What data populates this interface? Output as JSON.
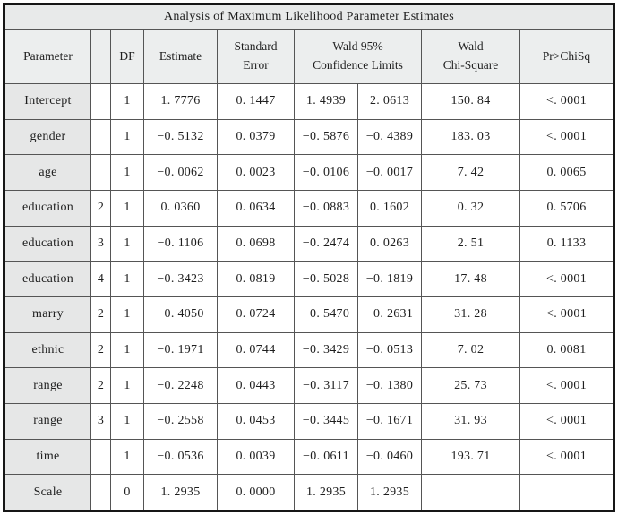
{
  "table": {
    "title": "Analysis of Maximum Likelihood Parameter Estimates",
    "headers": {
      "parameter": "Parameter",
      "level": "",
      "df": "DF",
      "estimate": "Estimate",
      "std_error_line1": "Standard",
      "std_error_line2": "Error",
      "ci_line1": "Wald 95%",
      "ci_line2": "Confidence Limits",
      "chi_square_line1": "Wald",
      "chi_square_line2": "Chi-Square",
      "p_value": "Pr>ChiSq"
    },
    "rows": [
      {
        "parameter": "Intercept",
        "level": "",
        "df": "1",
        "estimate": "1. 7776",
        "std_error": "0. 1447",
        "ci_lower": "1. 4939",
        "ci_upper": "2. 0613",
        "chi_square": "150. 84",
        "p": "<. 0001"
      },
      {
        "parameter": "gender",
        "level": "",
        "df": "1",
        "estimate": "−0. 5132",
        "std_error": "0. 0379",
        "ci_lower": "−0. 5876",
        "ci_upper": "−0. 4389",
        "chi_square": "183. 03",
        "p": "<. 0001"
      },
      {
        "parameter": "age",
        "level": "",
        "df": "1",
        "estimate": "−0. 0062",
        "std_error": "0. 0023",
        "ci_lower": "−0. 0106",
        "ci_upper": "−0. 0017",
        "chi_square": "7. 42",
        "p": "0. 0065"
      },
      {
        "parameter": "education",
        "level": "2",
        "df": "1",
        "estimate": "0. 0360",
        "std_error": "0. 0634",
        "ci_lower": "−0. 0883",
        "ci_upper": "0. 1602",
        "chi_square": "0. 32",
        "p": "0. 5706"
      },
      {
        "parameter": "education",
        "level": "3",
        "df": "1",
        "estimate": "−0. 1106",
        "std_error": "0. 0698",
        "ci_lower": "−0. 2474",
        "ci_upper": "0. 0263",
        "chi_square": "2. 51",
        "p": "0. 1133"
      },
      {
        "parameter": "education",
        "level": "4",
        "df": "1",
        "estimate": "−0. 3423",
        "std_error": "0. 0819",
        "ci_lower": "−0. 5028",
        "ci_upper": "−0. 1819",
        "chi_square": "17. 48",
        "p": "<. 0001"
      },
      {
        "parameter": "marry",
        "level": "2",
        "df": "1",
        "estimate": "−0. 4050",
        "std_error": "0. 0724",
        "ci_lower": "−0. 5470",
        "ci_upper": "−0. 2631",
        "chi_square": "31. 28",
        "p": "<. 0001"
      },
      {
        "parameter": "ethnic",
        "level": "2",
        "df": "1",
        "estimate": "−0. 1971",
        "std_error": "0. 0744",
        "ci_lower": "−0. 3429",
        "ci_upper": "−0. 0513",
        "chi_square": "7. 02",
        "p": "0. 0081"
      },
      {
        "parameter": "range",
        "level": "2",
        "df": "1",
        "estimate": "−0. 2248",
        "std_error": "0. 0443",
        "ci_lower": "−0. 3117",
        "ci_upper": "−0. 1380",
        "chi_square": "25. 73",
        "p": "<. 0001"
      },
      {
        "parameter": "range",
        "level": "3",
        "df": "1",
        "estimate": "−0. 2558",
        "std_error": "0. 0453",
        "ci_lower": "−0. 3445",
        "ci_upper": "−0. 1671",
        "chi_square": "31. 93",
        "p": "<. 0001"
      },
      {
        "parameter": "time",
        "level": "",
        "df": "1",
        "estimate": "−0. 0536",
        "std_error": "0. 0039",
        "ci_lower": "−0. 0611",
        "ci_upper": "−0. 0460",
        "chi_square": "193. 71",
        "p": "<. 0001"
      },
      {
        "parameter": "Scale",
        "level": "",
        "df": "0",
        "estimate": "1. 2935",
        "std_error": "0. 0000",
        "ci_lower": "1. 2935",
        "ci_upper": "1. 2935",
        "chi_square": "",
        "p": ""
      }
    ],
    "colors": {
      "shaded_cell": "#e6e7e7",
      "title_row_bg": "#e8eaea",
      "header_row_bg": "#eceeee",
      "outer_border": "#161616",
      "grid_line": "#555555"
    }
  }
}
